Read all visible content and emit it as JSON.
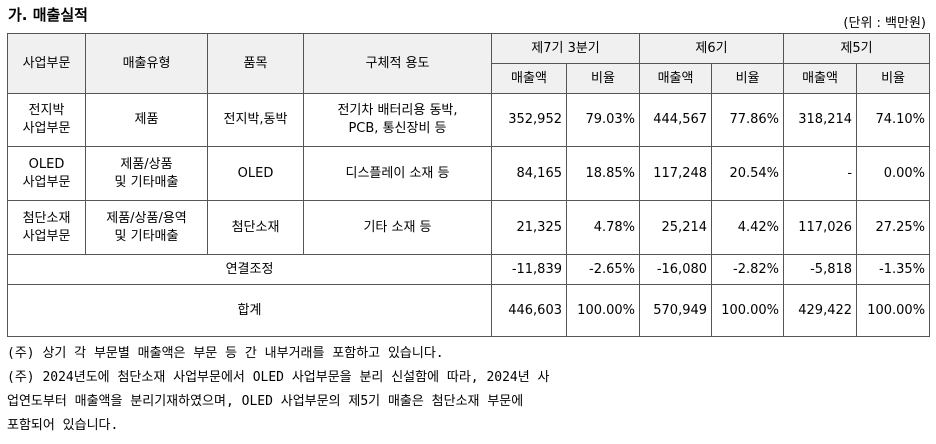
{
  "title": "가. 매출실적",
  "unit": "(단위 : 백만원)",
  "table": {
    "headers": {
      "segment": "사업부문",
      "type": "매출유형",
      "item": "품목",
      "usage": "구체적 용도",
      "p7": "제7기 3분기",
      "p6": "제6기",
      "p5": "제5기",
      "sales": "매출액",
      "ratio": "비율"
    },
    "rows": [
      {
        "segment": "전지박\n사업부문",
        "type": "제품",
        "item": "전지박,동박",
        "usage": "전기차 배터리용 동박,\nPCB, 통신장비 등",
        "p7_sales": "352,952",
        "p7_ratio": "79.03%",
        "p6_sales": "444,567",
        "p6_ratio": "77.86%",
        "p5_sales": "318,214",
        "p5_ratio": "74.10%"
      },
      {
        "segment": "OLED\n사업부문",
        "type": "제품/상품\n및 기타매출",
        "item": "OLED",
        "usage": "디스플레이 소재 등",
        "p7_sales": "84,165",
        "p7_ratio": "18.85%",
        "p6_sales": "117,248",
        "p6_ratio": "20.54%",
        "p5_sales": "-",
        "p5_ratio": "0.00%"
      },
      {
        "segment": "첨단소재\n사업부문",
        "type": "제품/상품/용역\n및 기타매출",
        "item": "첨단소재",
        "usage": "기타 소재 등",
        "p7_sales": "21,325",
        "p7_ratio": "4.78%",
        "p6_sales": "25,214",
        "p6_ratio": "4.42%",
        "p5_sales": "117,026",
        "p5_ratio": "27.25%"
      }
    ],
    "adjust": {
      "label": "연결조정",
      "p7_sales": "-11,839",
      "p7_ratio": "-2.65%",
      "p6_sales": "-16,080",
      "p6_ratio": "-2.82%",
      "p5_sales": "-5,818",
      "p5_ratio": "-1.35%"
    },
    "total": {
      "label": "합계",
      "p7_sales": "446,603",
      "p7_ratio": "100.00%",
      "p6_sales": "570,949",
      "p6_ratio": "100.00%",
      "p5_sales": "429,422",
      "p5_ratio": "100.00%"
    }
  },
  "notes": [
    "(주) 상기 각 부문별 매출액은 부문 등 간 내부거래를 포함하고 있습니다.",
    "(주) 2024년도에 첨단소재 사업부문에서 OLED 사업부문을 분리 신설함에 따라, 2024년 사",
    "업연도부터 매출액을 분리기재하였으며, OLED 사업부문의 제5기 매출은 첨단소재 부문에",
    "포함되어 있습니다."
  ]
}
